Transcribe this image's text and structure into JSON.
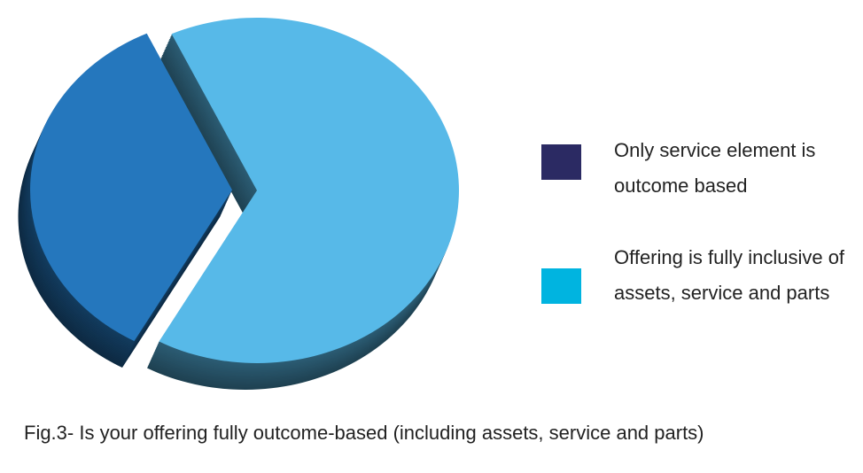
{
  "chart_data": {
    "type": "pie",
    "categories": [
      "Only service element is outcome based",
      "Offering is fully inclusive of assets, service and parts"
    ],
    "values": [
      35,
      65
    ],
    "colors": [
      "#2577bd",
      "#57b9e8"
    ],
    "legend_colors": [
      "#2b2a63",
      "#00b4e0"
    ],
    "caption": "Fig.3- Is your offering fully outcome-based (including assets, service and parts)"
  }
}
